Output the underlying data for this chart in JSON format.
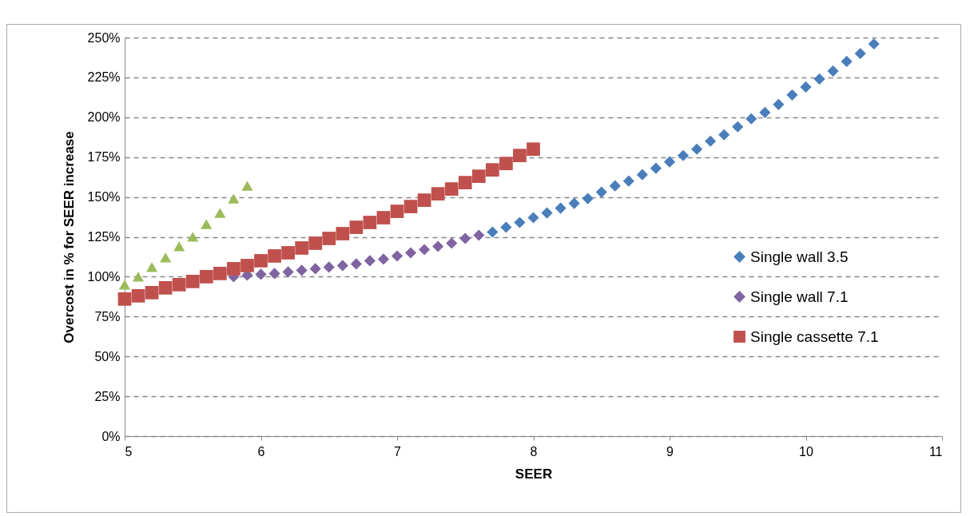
{
  "chart_data": {
    "type": "scatter",
    "xlabel": "SEER",
    "ylabel": "Overcost in % for SEER increase",
    "xlim": [
      5,
      11
    ],
    "xticks": [
      5,
      6,
      7,
      8,
      9,
      10,
      11
    ],
    "ylim": [
      0,
      250
    ],
    "yticks": [
      {
        "value": 0,
        "label": "0%"
      },
      {
        "value": 25,
        "label": "25%"
      },
      {
        "value": 50,
        "label": "50%"
      },
      {
        "value": 75,
        "label": "75%"
      },
      {
        "value": 100,
        "label": "100%"
      },
      {
        "value": 125,
        "label": "125%"
      },
      {
        "value": 150,
        "label": "150%"
      },
      {
        "value": 175,
        "label": "175%"
      },
      {
        "value": 200,
        "label": "200%"
      },
      {
        "value": 225,
        "label": "225%"
      },
      {
        "value": 250,
        "label": "250%"
      }
    ],
    "grid": "y",
    "legend": "right",
    "series": [
      {
        "name": "Single wall 3.5",
        "color": "#4a7ebb",
        "marker": "diamond",
        "x": [
          7.7,
          7.8,
          7.9,
          8.0,
          8.1,
          8.2,
          8.3,
          8.4,
          8.5,
          8.6,
          8.7,
          8.8,
          8.9,
          9.0,
          9.1,
          9.2,
          9.3,
          9.4,
          9.5,
          9.6,
          9.7,
          9.8,
          9.9,
          10.0,
          10.1,
          10.2,
          10.3,
          10.4,
          10.5
        ],
        "values": [
          128,
          131,
          134,
          137,
          140,
          143,
          146,
          149,
          153,
          157,
          160,
          164,
          168,
          172,
          176,
          180,
          185,
          189,
          194,
          199,
          203,
          208,
          214,
          219,
          224,
          229,
          235,
          240,
          246
        ]
      },
      {
        "name": "Single wall 7.1",
        "color": "#8064a2",
        "marker": "diamond",
        "x": [
          5.8,
          5.9,
          6.0,
          6.1,
          6.2,
          6.3,
          6.4,
          6.5,
          6.6,
          6.7,
          6.8,
          6.9,
          7.0,
          7.1,
          7.2,
          7.3,
          7.4,
          7.5,
          7.6
        ],
        "values": [
          100,
          101,
          101.5,
          102,
          103,
          104,
          105,
          106,
          107,
          108,
          110,
          111,
          113,
          115,
          117,
          119,
          121,
          124,
          126
        ]
      },
      {
        "name": "Single cassette 7.1",
        "color": "#c0504d",
        "marker": "square",
        "x": [
          5.0,
          5.1,
          5.2,
          5.3,
          5.4,
          5.5,
          5.6,
          5.7,
          5.8,
          5.9,
          6.0,
          6.1,
          6.2,
          6.3,
          6.4,
          6.5,
          6.6,
          6.7,
          6.8,
          6.9,
          7.0,
          7.1,
          7.2,
          7.3,
          7.4,
          7.5,
          7.6,
          7.7,
          7.8,
          7.9,
          8.0
        ],
        "values": [
          86,
          88,
          90,
          93,
          95,
          97,
          100,
          102,
          105,
          107,
          110,
          113,
          115,
          118,
          121,
          124,
          127,
          131,
          134,
          137,
          141,
          144,
          148,
          152,
          155,
          159,
          163,
          167,
          171,
          176,
          180
        ]
      },
      {
        "color": "#9bbb59",
        "marker": "triangle",
        "x": [
          5.0,
          5.1,
          5.2,
          5.3,
          5.4,
          5.5,
          5.6,
          5.7,
          5.8,
          5.9
        ],
        "values": [
          95,
          100,
          106,
          112,
          119,
          125,
          133,
          140,
          149,
          157
        ]
      }
    ]
  }
}
